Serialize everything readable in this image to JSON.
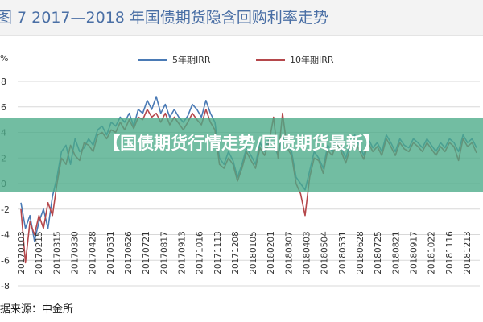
{
  "figure": {
    "title": "图 7  2017—2018 年国债期货隐含回购利率走势",
    "unit": "%",
    "source": "据来源：中金所"
  },
  "banner": {
    "text": "【国债期货行情走势/国债期货最新】"
  },
  "chart_data": {
    "type": "line",
    "title": "2017—2018 年国债期货隐含回购利率走势",
    "ylabel": "%",
    "ylim": [
      -8,
      8
    ],
    "y_ticks": [
      "8",
      "6",
      "4",
      "2",
      "0",
      "-2",
      "-4",
      "-6",
      "-8"
    ],
    "x_tick_labels": [
      "20170103",
      "20170215",
      "20170315",
      "20170330",
      "20170428",
      "20170531",
      "20170626",
      "20170721",
      "20170817",
      "20170913",
      "20171016",
      "20171113",
      "20171208",
      "20180105",
      "20180201",
      "20180307",
      "20180403",
      "20180504",
      "20180531",
      "20180628",
      "20180725",
      "20180821",
      "20180917",
      "20181022",
      "20181116",
      "20181213"
    ],
    "legend": [
      "5年期IRR",
      "10年期IRR"
    ],
    "series": [
      {
        "name": "5年期IRR",
        "color": "#4a7ab5",
        "values": [
          -1.5,
          -3.5,
          -2.5,
          -4.5,
          -3,
          -2,
          -3.5,
          -1,
          0.5,
          2.5,
          3,
          1.5,
          3.5,
          2.5,
          2.8,
          3.5,
          3,
          4.2,
          4.5,
          3.8,
          4.8,
          4.5,
          5.2,
          4.8,
          5.5,
          4.5,
          5.8,
          5.5,
          6.5,
          5.8,
          6.8,
          5.5,
          6.2,
          5.2,
          5.8,
          5.2,
          4.8,
          5.3,
          6.2,
          5.8,
          5.2,
          6.5,
          5.5,
          4.8,
          2,
          1.5,
          2.5,
          1.8,
          0.5,
          1.5,
          2.8,
          2.2,
          1.5,
          3.2,
          2.5,
          3.5,
          3,
          2.2,
          3.8,
          3,
          2.5,
          0.5,
          0,
          -0.5,
          1,
          2.5,
          2,
          1.2,
          3,
          2.5,
          3.5,
          2.8,
          2,
          3.2,
          3.8,
          3,
          2.2,
          3.5,
          2.8,
          3.2,
          2.5,
          3.8,
          3.2,
          2.5,
          3.5,
          3,
          2.8,
          3.5,
          3.2,
          2.8,
          3.5,
          3,
          2.5,
          3.2,
          2.8,
          3.5,
          3.2,
          2.5,
          3.8,
          3.2,
          3.5,
          2.8
        ]
      },
      {
        "name": "10年期IRR",
        "color": "#b5474b",
        "values": [
          -2,
          -6.2,
          -3,
          -4,
          -2.5,
          -3.5,
          -1.5,
          -2.5,
          0,
          2,
          1.5,
          3,
          2.2,
          1.8,
          3.2,
          3,
          2.5,
          3.8,
          4,
          3.5,
          4.2,
          4,
          4.8,
          4.2,
          5,
          4.3,
          5.2,
          5,
          5.8,
          5.2,
          5.5,
          4.8,
          5.5,
          4.6,
          5.2,
          4.7,
          4.2,
          4.8,
          5.5,
          5,
          4.6,
          5.8,
          4.8,
          4.2,
          1.5,
          1.2,
          2,
          1.5,
          0.2,
          1.2,
          2.5,
          1.8,
          1.2,
          2.8,
          2.2,
          3.2,
          5.2,
          2,
          5.5,
          2.8,
          2.2,
          0,
          -0.8,
          -2.5,
          0.5,
          2,
          1.8,
          0.8,
          2.6,
          2.2,
          3.2,
          2.5,
          1.6,
          2.8,
          3.4,
          2.6,
          1.9,
          3.2,
          2.5,
          2.9,
          2.2,
          3.5,
          2.9,
          2.2,
          3.2,
          2.7,
          2.5,
          3.2,
          2.9,
          2.5,
          3.2,
          2.7,
          2.2,
          2.9,
          2.5,
          3.2,
          2.9,
          1.8,
          3.5,
          2.9,
          3.2,
          2.4
        ]
      }
    ]
  }
}
